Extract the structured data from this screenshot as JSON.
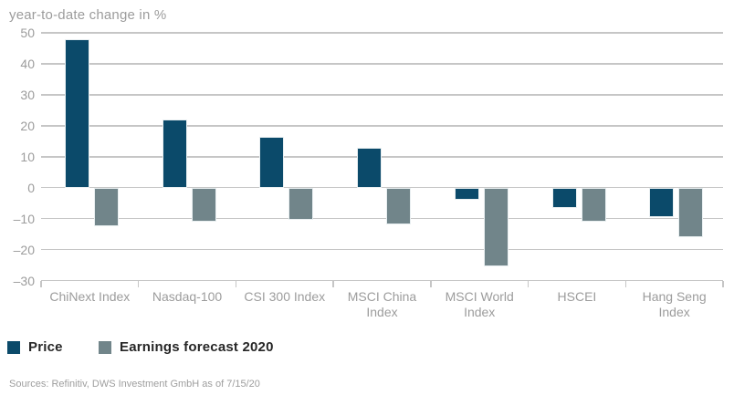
{
  "footer": {
    "sources": "Sources: Refinitiv, DWS Investment GmbH as of 7/15/20"
  },
  "chart_data": {
    "type": "bar",
    "title": "year-to-date change in %",
    "categories": [
      "ChiNext Index",
      "Nasdaq-100",
      "CSI 300 Index",
      "MSCI China Index",
      "MSCI World Index",
      "HSCEI",
      "Hang Seng Index"
    ],
    "category_label_lines": [
      [
        "ChiNext Index"
      ],
      [
        "Nasdaq-100"
      ],
      [
        "CSI 300 Index"
      ],
      [
        "MSCI China",
        "Index"
      ],
      [
        "MSCI World",
        "Index"
      ],
      [
        "HSCEI"
      ],
      [
        "Hang Seng",
        "Index"
      ]
    ],
    "series": [
      {
        "name": "Price",
        "color": "#0b4a6a",
        "values": [
          48,
          22,
          16.5,
          13,
          -4,
          -6.5,
          -9.5
        ]
      },
      {
        "name": "Earnings forecast 2020",
        "color": "#71858a",
        "values": [
          -12.5,
          -11,
          -10.5,
          -12,
          -25.5,
          -11,
          -16
        ]
      }
    ],
    "xlabel": "",
    "ylabel": "year-to-date change in %",
    "ylim": [
      -30,
      50
    ],
    "yticks": [
      50,
      40,
      30,
      20,
      10,
      0,
      -10,
      -20,
      -30
    ],
    "ytick_labels": [
      "50",
      "40",
      "30",
      "20",
      "10",
      "0",
      "–10",
      "–20",
      "–30"
    ],
    "grid": "horizontal",
    "legend_position": "bottom-left"
  },
  "colors": {
    "grid": "#c6c6c6",
    "axis_text": "#9c9c9c",
    "legend_text": "#262626",
    "source_text": "#9e9e9e",
    "background": "#ffffff"
  }
}
